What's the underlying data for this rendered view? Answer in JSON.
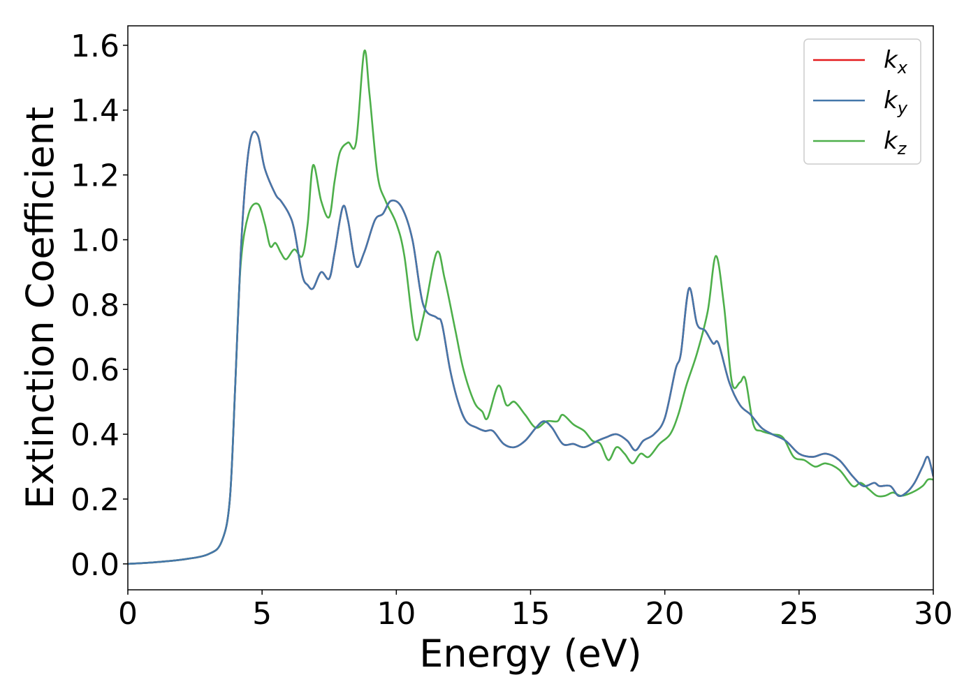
{
  "chart_data": {
    "type": "line",
    "title": "",
    "xlabel": "Energy (eV)",
    "ylabel": "Extinction Coefficient",
    "xlim": [
      0,
      30
    ],
    "ylim": [
      -0.08,
      1.66
    ],
    "xticks": [
      0,
      5,
      10,
      15,
      20,
      25,
      30
    ],
    "xtick_labels": [
      "0",
      "5",
      "10",
      "15",
      "20",
      "25",
      "30"
    ],
    "yticks": [
      0.0,
      0.2,
      0.4,
      0.6,
      0.8,
      1.0,
      1.2,
      1.4,
      1.6
    ],
    "ytick_labels": [
      "0.0",
      "0.2",
      "0.4",
      "0.6",
      "0.8",
      "1.0",
      "1.2",
      "1.4",
      "1.6"
    ],
    "grid": false,
    "legend_position": "top-right",
    "series": [
      {
        "name": "k_x",
        "label_main": "k",
        "label_sub": "x",
        "color": "#e41a1c",
        "x": [
          0,
          1,
          2,
          3,
          3.5,
          3.8,
          4.0,
          4.2,
          4.4,
          4.6,
          4.85,
          5.1,
          5.5,
          5.7,
          6.0,
          6.2,
          6.5,
          6.7,
          6.9,
          7.2,
          7.5,
          7.7,
          8.0,
          8.2,
          8.5,
          8.8,
          9.2,
          9.5,
          9.8,
          10.2,
          10.6,
          11.0,
          11.5,
          11.7,
          12.0,
          12.3,
          12.6,
          13.0,
          13.3,
          13.6,
          14.0,
          14.4,
          14.8,
          15.2,
          15.5,
          15.8,
          16.2,
          16.6,
          17.0,
          17.5,
          17.8,
          18.2,
          18.6,
          18.9,
          19.2,
          19.6,
          20.0,
          20.4,
          20.6,
          20.9,
          21.2,
          21.5,
          21.8,
          22.0,
          22.4,
          22.8,
          23.2,
          23.6,
          24.0,
          24.5,
          25.0,
          25.5,
          26.0,
          26.5,
          27.0,
          27.4,
          27.8,
          28.0,
          28.4,
          28.7,
          29.0,
          29.3,
          29.6,
          29.8,
          30.0
        ],
        "y": [
          0.0,
          0.005,
          0.013,
          0.03,
          0.07,
          0.2,
          0.55,
          0.95,
          1.2,
          1.32,
          1.32,
          1.22,
          1.14,
          1.12,
          1.08,
          1.03,
          0.89,
          0.86,
          0.85,
          0.9,
          0.88,
          0.96,
          1.1,
          1.06,
          0.92,
          0.96,
          1.06,
          1.08,
          1.12,
          1.1,
          1.0,
          0.8,
          0.76,
          0.74,
          0.6,
          0.5,
          0.44,
          0.42,
          0.41,
          0.41,
          0.37,
          0.36,
          0.38,
          0.42,
          0.44,
          0.42,
          0.37,
          0.37,
          0.36,
          0.38,
          0.39,
          0.4,
          0.38,
          0.35,
          0.38,
          0.4,
          0.45,
          0.6,
          0.65,
          0.85,
          0.74,
          0.72,
          0.68,
          0.68,
          0.56,
          0.49,
          0.46,
          0.42,
          0.4,
          0.38,
          0.34,
          0.33,
          0.34,
          0.32,
          0.27,
          0.24,
          0.25,
          0.24,
          0.24,
          0.21,
          0.22,
          0.25,
          0.3,
          0.33,
          0.27
        ]
      },
      {
        "name": "k_y",
        "label_main": "k",
        "label_sub": "y",
        "color": "#4477aa",
        "x": [
          0,
          1,
          2,
          3,
          3.5,
          3.8,
          4.0,
          4.2,
          4.4,
          4.6,
          4.85,
          5.1,
          5.5,
          5.7,
          6.0,
          6.2,
          6.5,
          6.7,
          6.9,
          7.2,
          7.5,
          7.7,
          8.0,
          8.2,
          8.5,
          8.8,
          9.2,
          9.5,
          9.8,
          10.2,
          10.6,
          11.0,
          11.5,
          11.7,
          12.0,
          12.3,
          12.6,
          13.0,
          13.3,
          13.6,
          14.0,
          14.4,
          14.8,
          15.2,
          15.5,
          15.8,
          16.2,
          16.6,
          17.0,
          17.5,
          17.8,
          18.2,
          18.6,
          18.9,
          19.2,
          19.6,
          20.0,
          20.4,
          20.6,
          20.9,
          21.2,
          21.5,
          21.8,
          22.0,
          22.4,
          22.8,
          23.2,
          23.6,
          24.0,
          24.5,
          25.0,
          25.5,
          26.0,
          26.5,
          27.0,
          27.4,
          27.8,
          28.0,
          28.4,
          28.7,
          29.0,
          29.3,
          29.6,
          29.8,
          30.0
        ],
        "y": [
          0.0,
          0.005,
          0.013,
          0.03,
          0.07,
          0.2,
          0.55,
          0.95,
          1.2,
          1.32,
          1.32,
          1.22,
          1.14,
          1.12,
          1.08,
          1.03,
          0.89,
          0.86,
          0.85,
          0.9,
          0.88,
          0.96,
          1.1,
          1.06,
          0.92,
          0.96,
          1.06,
          1.08,
          1.12,
          1.1,
          1.0,
          0.8,
          0.76,
          0.74,
          0.6,
          0.5,
          0.44,
          0.42,
          0.41,
          0.41,
          0.37,
          0.36,
          0.38,
          0.42,
          0.44,
          0.42,
          0.37,
          0.37,
          0.36,
          0.38,
          0.39,
          0.4,
          0.38,
          0.35,
          0.38,
          0.4,
          0.45,
          0.6,
          0.65,
          0.85,
          0.74,
          0.72,
          0.68,
          0.68,
          0.56,
          0.49,
          0.46,
          0.42,
          0.4,
          0.38,
          0.34,
          0.33,
          0.34,
          0.32,
          0.27,
          0.24,
          0.25,
          0.24,
          0.24,
          0.21,
          0.22,
          0.25,
          0.3,
          0.33,
          0.27
        ]
      },
      {
        "name": "k_z",
        "label_main": "k",
        "label_sub": "z",
        "color": "#4daf4a",
        "x": [
          0,
          1,
          2,
          3,
          3.5,
          3.8,
          4.0,
          4.2,
          4.5,
          4.85,
          5.1,
          5.3,
          5.5,
          5.7,
          5.9,
          6.2,
          6.5,
          6.7,
          6.9,
          7.2,
          7.5,
          7.7,
          7.9,
          8.2,
          8.5,
          8.8,
          9.0,
          9.3,
          9.6,
          10.0,
          10.3,
          10.7,
          11.0,
          11.5,
          11.8,
          12.2,
          12.5,
          12.9,
          13.2,
          13.4,
          13.8,
          14.1,
          14.4,
          14.8,
          15.2,
          15.6,
          16.0,
          16.2,
          16.6,
          17.0,
          17.3,
          17.6,
          17.9,
          18.2,
          18.5,
          18.8,
          19.1,
          19.4,
          19.8,
          20.2,
          20.5,
          20.8,
          21.2,
          21.6,
          21.9,
          22.2,
          22.5,
          22.8,
          23.0,
          23.3,
          23.6,
          24.0,
          24.4,
          24.8,
          25.2,
          25.6,
          26.0,
          26.5,
          27.0,
          27.3,
          27.6,
          27.9,
          28.2,
          28.5,
          28.8,
          29.2,
          29.6,
          29.8,
          30.0
        ],
        "y": [
          0.0,
          0.005,
          0.013,
          0.03,
          0.07,
          0.2,
          0.55,
          0.92,
          1.08,
          1.11,
          1.05,
          0.98,
          0.99,
          0.96,
          0.94,
          0.97,
          0.95,
          1.05,
          1.23,
          1.12,
          1.07,
          1.18,
          1.27,
          1.3,
          1.3,
          1.58,
          1.45,
          1.2,
          1.12,
          1.05,
          0.95,
          0.7,
          0.76,
          0.96,
          0.88,
          0.72,
          0.6,
          0.5,
          0.47,
          0.45,
          0.55,
          0.49,
          0.5,
          0.46,
          0.42,
          0.44,
          0.44,
          0.46,
          0.43,
          0.41,
          0.38,
          0.37,
          0.32,
          0.36,
          0.34,
          0.31,
          0.34,
          0.33,
          0.37,
          0.4,
          0.46,
          0.55,
          0.65,
          0.78,
          0.95,
          0.8,
          0.56,
          0.56,
          0.57,
          0.43,
          0.41,
          0.4,
          0.39,
          0.33,
          0.32,
          0.3,
          0.31,
          0.29,
          0.24,
          0.25,
          0.23,
          0.21,
          0.21,
          0.22,
          0.21,
          0.22,
          0.24,
          0.26,
          0.26
        ]
      }
    ]
  }
}
